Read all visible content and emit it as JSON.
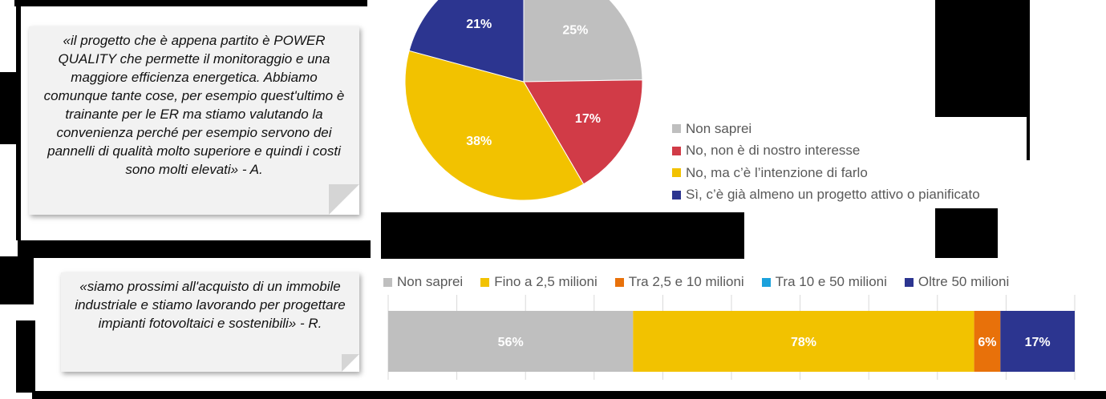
{
  "quotes": [
    {
      "text": "«il progetto che è appena partito è POWER QUALITY che permette il monitoraggio e una maggiore efficienza energetica. Abbiamo comunque tante cose, per esempio quest'ultimo è trainante per le ER ma stiamo valutando la convenienza perché per esempio servono dei pannelli di qualità molto superiore e quindi i costi sono molti elevati» - A."
    },
    {
      "text": "«siamo prossimi all'acquisto di un immobile industriale e stiamo lavorando per progettare impianti fotovoltaici e sostenibili» - R."
    }
  ],
  "chart_data": [
    {
      "type": "pie",
      "categories": [
        "Non saprei",
        "No, non è di nostro interesse",
        "No, ma c’è l’intenzione di farlo",
        "Sì, c’è già almeno un progetto attivo o pianificato"
      ],
      "values": [
        25,
        17,
        38,
        21
      ],
      "value_labels": [
        "25%",
        "17%",
        "38%",
        "21%"
      ],
      "colors": [
        "#bfbfbf",
        "#d13b47",
        "#f2c200",
        "#2c3590"
      ],
      "legend_position": "right"
    },
    {
      "type": "bar",
      "orientation": "horizontal-stacked",
      "series": [
        {
          "name": "Non saprei",
          "values": [
            56
          ],
          "label": "56%",
          "color": "#bfbfbf"
        },
        {
          "name": "Fino a 2,5 milioni",
          "values": [
            78
          ],
          "label": "78%",
          "color": "#f2c200"
        },
        {
          "name": "Tra 2,5 e 10 milioni",
          "values": [
            6
          ],
          "label": "6%",
          "color": "#e8710a"
        },
        {
          "name": "Tra 10 e 50 milioni",
          "values": [
            0
          ],
          "label": "",
          "color": "#1ba1dc"
        },
        {
          "name": "Oltre 50 milioni",
          "values": [
            17
          ],
          "label": "17%",
          "color": "#2c3590"
        }
      ],
      "grid": true,
      "legend_position": "top"
    }
  ]
}
